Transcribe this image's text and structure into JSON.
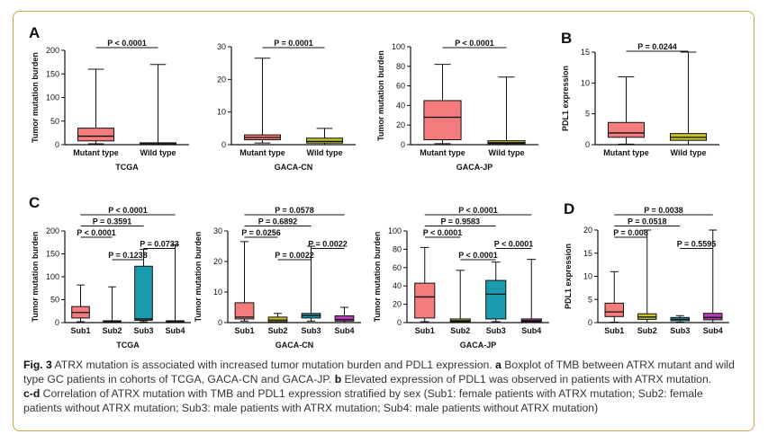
{
  "caption": {
    "figure_label": "Fig. 3",
    "title": "ATRX mutation is associated with increased tumor mutation burden and PDL1 expression.",
    "part_a_label": "a",
    "part_a_text": "Boxplot of TMB between ATRX mutant and wild type GC patients in cohorts of TCGA, GACA-CN and GACA-JP.",
    "part_b_label": "b",
    "part_b_text": "Elevated expression of PDL1 was observed in patients with ATRX mutation.",
    "part_cd_label": "c-d",
    "part_cd_text": "Correlation of ATRX mutation with TMB and PDL1 expression stratified by sex (Sub1: female patients with ATRX mutation; Sub2: female patients without ATRX mutation; Sub3: male patients with ATRX mutation; Sub4: male patients without ATRX mutation)"
  },
  "colors": {
    "red": "#f47c7c",
    "olive": "#c3c32a",
    "teal": "#1a9cae",
    "purple": "#b540b5",
    "frame": "#c9a24a"
  },
  "chart_data": [
    {
      "id": "A1",
      "panel": "A",
      "type": "box",
      "ylabel": "Tumor mutation burden",
      "xlabel": "TCGA",
      "ylim": [
        0,
        200
      ],
      "yticks": [
        0,
        50,
        100,
        150,
        200
      ],
      "categories": [
        "Mutant type",
        "Wild type"
      ],
      "boxes": [
        {
          "min": 2,
          "q1": 8,
          "median": 18,
          "q3": 35,
          "max": 160,
          "color": "red"
        },
        {
          "min": 0,
          "q1": 1,
          "median": 2,
          "q3": 4,
          "max": 170,
          "color": "olive"
        }
      ],
      "comparisons": [
        {
          "from": 0,
          "to": 1,
          "label": "P < 0.0001"
        }
      ]
    },
    {
      "id": "A2",
      "panel": "A",
      "type": "box",
      "ylabel": "",
      "xlabel": "GACA-CN",
      "ylim": [
        0,
        30
      ],
      "yticks": [
        0,
        10,
        20,
        30
      ],
      "categories": [
        "Mutant type",
        "Wild type"
      ],
      "boxes": [
        {
          "min": 0.5,
          "q1": 1.5,
          "median": 2.2,
          "q3": 3,
          "max": 26.5,
          "color": "red"
        },
        {
          "min": 0,
          "q1": 0.5,
          "median": 1,
          "q3": 2,
          "max": 5,
          "color": "olive"
        }
      ],
      "comparisons": [
        {
          "from": 0,
          "to": 1,
          "label": "P = 0.0001"
        }
      ]
    },
    {
      "id": "A3",
      "panel": "A",
      "type": "box",
      "ylabel": "Tumor mutation burden",
      "xlabel": "GACA-JP",
      "ylim": [
        0,
        100
      ],
      "yticks": [
        0,
        20,
        40,
        60,
        80,
        100
      ],
      "categories": [
        "Mutant type",
        "Wild type"
      ],
      "boxes": [
        {
          "min": 1,
          "q1": 5,
          "median": 28,
          "q3": 45,
          "max": 82,
          "color": "red"
        },
        {
          "min": 0,
          "q1": 1,
          "median": 2,
          "q3": 4,
          "max": 69,
          "color": "olive"
        }
      ],
      "comparisons": [
        {
          "from": 0,
          "to": 1,
          "label": "P < 0.0001"
        }
      ]
    },
    {
      "id": "B",
      "panel": "B",
      "type": "box",
      "ylabel": "PDL1 expression",
      "xlabel": "",
      "ylim": [
        0,
        15
      ],
      "yticks": [
        0,
        5,
        10,
        15
      ],
      "categories": [
        "Mutant type",
        "Wild type"
      ],
      "boxes": [
        {
          "min": 0.1,
          "q1": 1.2,
          "median": 1.9,
          "q3": 3.6,
          "max": 11,
          "color": "red"
        },
        {
          "min": 0,
          "q1": 0.7,
          "median": 1.2,
          "q3": 1.8,
          "max": 15,
          "color": "olive"
        }
      ],
      "comparisons": [
        {
          "from": 0,
          "to": 1,
          "label": "P = 0.0244"
        }
      ]
    },
    {
      "id": "C1",
      "panel": "C",
      "type": "box",
      "ylabel": "Tumor mutation burden",
      "xlabel": "TCGA",
      "ylim": [
        0,
        200
      ],
      "yticks": [
        0,
        50,
        100,
        150,
        200
      ],
      "categories": [
        "Sub1",
        "Sub2",
        "Sub3",
        "Sub4"
      ],
      "boxes": [
        {
          "min": 2,
          "q1": 10,
          "median": 22,
          "q3": 35,
          "max": 82,
          "color": "red"
        },
        {
          "min": 0,
          "q1": 1,
          "median": 2,
          "q3": 4,
          "max": 78,
          "color": "olive"
        },
        {
          "min": 2,
          "q1": 5,
          "median": 8,
          "q3": 123,
          "max": 160,
          "color": "teal"
        },
        {
          "min": 0,
          "q1": 1,
          "median": 2,
          "q3": 4,
          "max": 170,
          "color": "purple"
        }
      ],
      "comparisons": [
        {
          "from": 0,
          "to": 3,
          "label": "P < 0.0001"
        },
        {
          "from": 0,
          "to": 2,
          "label": "P = 0.3591"
        },
        {
          "from": 0,
          "to": 1,
          "label": "P < 0.0001"
        },
        {
          "from": 2,
          "to": 3,
          "label": "P = 0.0733"
        },
        {
          "from": 1,
          "to": 2,
          "label": "P = 0.1238"
        }
      ]
    },
    {
      "id": "C2",
      "panel": "C",
      "type": "box",
      "ylabel": "Tumor mutation burden",
      "xlabel": "GACA-CN",
      "ylim": [
        0,
        30
      ],
      "yticks": [
        0,
        10,
        20,
        30
      ],
      "categories": [
        "Sub1",
        "Sub2",
        "Sub3",
        "Sub4"
      ],
      "boxes": [
        {
          "min": 0.5,
          "q1": 1.2,
          "median": 1.8,
          "q3": 6.5,
          "max": 26.5,
          "color": "red"
        },
        {
          "min": 0,
          "q1": 0.3,
          "median": 0.8,
          "q3": 1.8,
          "max": 3,
          "color": "olive"
        },
        {
          "min": 0.5,
          "q1": 1.5,
          "median": 2.3,
          "q3": 3,
          "max": 25,
          "color": "teal"
        },
        {
          "min": 0,
          "q1": 0.5,
          "median": 1,
          "q3": 2.2,
          "max": 5,
          "color": "purple"
        }
      ],
      "comparisons": [
        {
          "from": 0,
          "to": 3,
          "label": "P = 0.0578"
        },
        {
          "from": 0,
          "to": 2,
          "label": "P = 0.6892"
        },
        {
          "from": 0,
          "to": 1,
          "label": "P = 0.0256"
        },
        {
          "from": 2,
          "to": 3,
          "label": "P = 0.0022"
        },
        {
          "from": 1,
          "to": 2,
          "label": "P = 0.0022"
        }
      ]
    },
    {
      "id": "C3",
      "panel": "C",
      "type": "box",
      "ylabel": "Tumor mutation burden",
      "xlabel": "GACA-JP",
      "ylim": [
        0,
        100
      ],
      "yticks": [
        0,
        20,
        40,
        60,
        80,
        100
      ],
      "categories": [
        "Sub1",
        "Sub2",
        "Sub3",
        "Sub4"
      ],
      "boxes": [
        {
          "min": 1,
          "q1": 5,
          "median": 28,
          "q3": 43,
          "max": 82,
          "color": "red"
        },
        {
          "min": 0,
          "q1": 1,
          "median": 2,
          "q3": 4,
          "max": 57,
          "color": "olive"
        },
        {
          "min": 1,
          "q1": 4,
          "median": 31,
          "q3": 46,
          "max": 66,
          "color": "teal"
        },
        {
          "min": 0,
          "q1": 1,
          "median": 2,
          "q3": 4,
          "max": 69,
          "color": "purple"
        }
      ],
      "comparisons": [
        {
          "from": 0,
          "to": 3,
          "label": "P < 0.0001"
        },
        {
          "from": 0,
          "to": 2,
          "label": "P = 0.9583"
        },
        {
          "from": 0,
          "to": 1,
          "label": "P < 0.0001"
        },
        {
          "from": 2,
          "to": 3,
          "label": "P < 0.0001"
        },
        {
          "from": 1,
          "to": 2,
          "label": "P < 0.0001"
        }
      ]
    },
    {
      "id": "D",
      "panel": "D",
      "type": "box",
      "ylabel": "PDL1 expression",
      "xlabel": "",
      "ylim": [
        0,
        20
      ],
      "yticks": [
        0,
        5,
        10,
        15,
        20
      ],
      "categories": [
        "Sub1",
        "Sub2",
        "Sub3",
        "Sub4"
      ],
      "boxes": [
        {
          "min": 0.1,
          "q1": 1.3,
          "median": 2.3,
          "q3": 4.2,
          "max": 11,
          "color": "red"
        },
        {
          "min": 0,
          "q1": 0.7,
          "median": 1.2,
          "q3": 1.9,
          "max": 20,
          "color": "olive"
        },
        {
          "min": 0.1,
          "q1": 0.4,
          "median": 0.7,
          "q3": 1.1,
          "max": 1.5,
          "color": "teal"
        },
        {
          "min": 0,
          "q1": 0.6,
          "median": 1.1,
          "q3": 2,
          "max": 20,
          "color": "purple"
        }
      ],
      "comparisons": [
        {
          "from": 0,
          "to": 3,
          "label": "P = 0.0038"
        },
        {
          "from": 0,
          "to": 2,
          "label": "P = 0.0518"
        },
        {
          "from": 0,
          "to": 1,
          "label": "P = 0.008"
        },
        {
          "from": 2,
          "to": 3,
          "label": "P = 0.5595"
        }
      ]
    }
  ]
}
